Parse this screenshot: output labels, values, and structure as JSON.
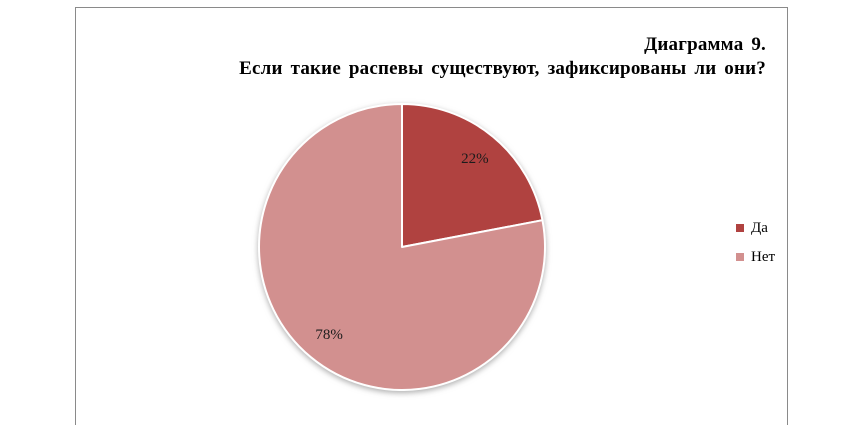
{
  "chart": {
    "title_line1": "Диаграмма  9.",
    "title_line2": "Если такие распевы существуют, зафиксированы ли они?"
  },
  "chart_data": {
    "type": "pie",
    "title": "Диаграмма 9. Если такие распевы существуют, зафиксированы ли они?",
    "categories": [
      "Да",
      "Нет"
    ],
    "values": [
      22,
      78
    ],
    "data_labels": [
      "22%",
      "78%"
    ],
    "colors": [
      "#b04240",
      "#d2908f"
    ],
    "start_angle_deg": 0,
    "direction": "clockwise",
    "legend_position": "right",
    "slice_separator_color": "#ffffff",
    "frame_border_color": "#8a8a8a",
    "background_color": "#ffffff"
  },
  "legend": {
    "items": [
      {
        "label": "Да",
        "color": "#b04240"
      },
      {
        "label": "Нет",
        "color": "#d2908f"
      }
    ]
  }
}
